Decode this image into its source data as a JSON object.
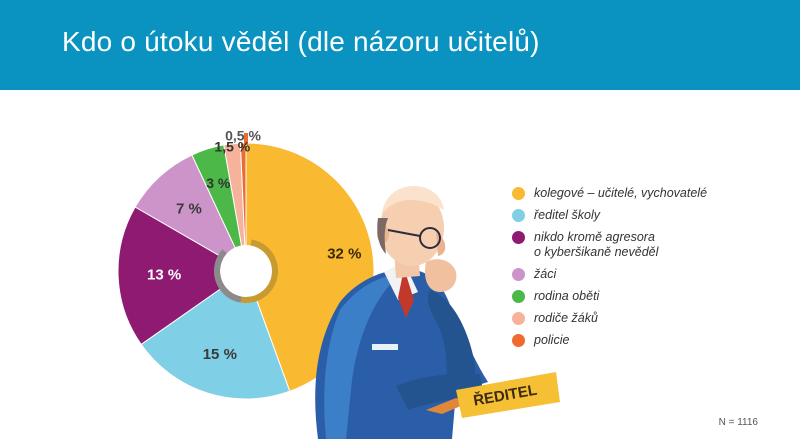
{
  "header": {
    "title": "Kdo o útoku věděl (dle názoru učitelů)"
  },
  "chart_data": {
    "type": "pie",
    "title": "Kdo o útoku věděl (dle názoru učitelů)",
    "slices": [
      {
        "label": "kolegové – učitelé, vychovatelé",
        "value": 32,
        "display": "32 %",
        "color": "#f9b931"
      },
      {
        "label": "ředitel školy",
        "value": 15,
        "display": "15 %",
        "color": "#7fcfe6"
      },
      {
        "label": "nikdo kromě agresora o kyberšikaně nevěděl",
        "value": 13,
        "display": "13 %",
        "color": "#8e1a72"
      },
      {
        "label": "žáci",
        "value": 7,
        "display": "7 %",
        "color": "#cc94c8"
      },
      {
        "label": "rodina oběti",
        "value": 3,
        "display": "3 %",
        "color": "#4cb848"
      },
      {
        "label": "rodiče žáků",
        "value": 1.5,
        "display": "1,5 %",
        "color": "#f6b29b"
      },
      {
        "label": "policie",
        "value": 0.5,
        "display": "0,5 %",
        "color": "#ee6a2f"
      }
    ],
    "legend_position": "right"
  },
  "legend": {
    "items": [
      {
        "lines": [
          "kolegové – učitelé, vychovatelé"
        ],
        "color": "#f9b931"
      },
      {
        "lines": [
          "ředitel školy"
        ],
        "color": "#7fcfe6"
      },
      {
        "lines": [
          "nikdo kromě agresora",
          "o kyberšikaně nevěděl"
        ],
        "color": "#8e1a72"
      },
      {
        "lines": [
          "žáci"
        ],
        "color": "#cc94c8"
      },
      {
        "lines": [
          "rodina oběti"
        ],
        "color": "#4cb848"
      },
      {
        "lines": [
          "rodiče žáků"
        ],
        "color": "#f6b29b"
      },
      {
        "lines": [
          "policie"
        ],
        "color": "#ee6a2f"
      }
    ]
  },
  "illustration": {
    "nameplate_text": "ŘEDITEL"
  },
  "footnote": "N = 1116"
}
